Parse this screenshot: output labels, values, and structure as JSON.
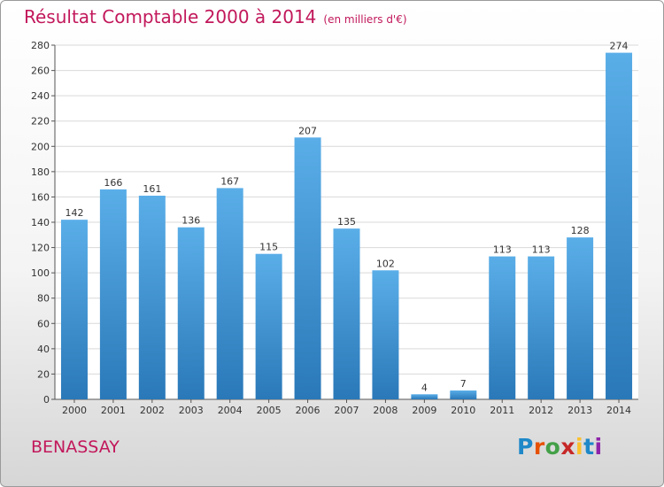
{
  "chart_data": {
    "type": "bar",
    "title": "Résultat Comptable 2000 à 2014",
    "subtitle": "(en milliers d'€)",
    "xlabel": "",
    "ylabel": "",
    "ylim": [
      0,
      280
    ],
    "yticks": [
      "0",
      "20",
      "40",
      "60",
      "80",
      "100",
      "120",
      "140",
      "160",
      "180",
      "200",
      "220",
      "240",
      "260",
      "280"
    ],
    "grid": true,
    "categories": [
      "2000",
      "2001",
      "2002",
      "2003",
      "2004",
      "2005",
      "2006",
      "2007",
      "2008",
      "2009",
      "2010",
      "2011",
      "2012",
      "2013",
      "2014"
    ],
    "values": [
      142,
      166,
      161,
      136,
      167,
      115,
      207,
      135,
      102,
      4,
      7,
      113,
      113,
      128,
      274
    ]
  },
  "footer": {
    "place_name": "BENASSAY",
    "logo_letters": [
      "P",
      "r",
      "o",
      "x",
      "i",
      "t",
      "i"
    ]
  },
  "colors": {
    "title": "#c2185b",
    "bar_light": "#5aaee8",
    "bar_dark": "#2a78b8",
    "grid": "#d9d9d9",
    "logo": [
      "#1e88c8",
      "#e65100",
      "#43a047",
      "#c62828",
      "#fbc02d",
      "#1e88c8",
      "#8e24aa"
    ]
  }
}
